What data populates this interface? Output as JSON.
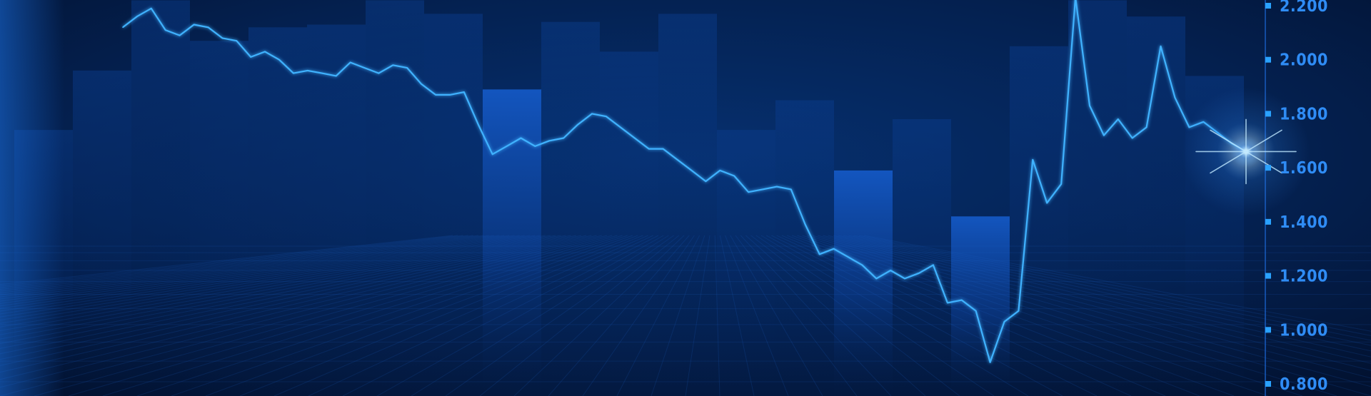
{
  "chart_data": {
    "type": "line",
    "title": "",
    "xlabel": "",
    "ylabel": "",
    "ylim": [
      0.78,
      2.22
    ],
    "y_axis_position": "right",
    "y_ticks": [
      0.8,
      1.0,
      1.2,
      1.4,
      1.6,
      1.8,
      2.0,
      2.2
    ],
    "y_tick_labels": [
      "0.800",
      "1.000",
      "1.200",
      "1.400",
      "1.600",
      "1.800",
      "2.000",
      "2.200"
    ],
    "grid": true,
    "legend": "none",
    "series": [
      {
        "values": [
          2.12,
          2.16,
          2.19,
          2.11,
          2.09,
          2.13,
          2.12,
          2.08,
          2.07,
          2.01,
          2.03,
          2.0,
          1.95,
          1.96,
          1.95,
          1.94,
          1.99,
          1.97,
          1.95,
          1.98,
          1.97,
          1.91,
          1.87,
          1.87,
          1.88,
          1.76,
          1.65,
          1.68,
          1.71,
          1.68,
          1.7,
          1.71,
          1.76,
          1.8,
          1.79,
          1.75,
          1.71,
          1.67,
          1.67,
          1.63,
          1.59,
          1.55,
          1.59,
          1.57,
          1.51,
          1.52,
          1.53,
          1.52,
          1.39,
          1.28,
          1.3,
          1.27,
          1.24,
          1.19,
          1.22,
          1.19,
          1.21,
          1.24,
          1.1,
          1.11,
          1.07,
          0.88,
          1.03,
          1.07,
          1.63,
          1.47,
          1.54,
          2.23,
          1.83,
          1.72,
          1.78,
          1.71,
          1.75,
          2.05,
          1.86,
          1.75,
          1.77,
          1.73,
          1.69,
          1.66
        ]
      }
    ],
    "background_bars": [
      {
        "value": 1.74
      },
      {
        "value": 1.96
      },
      {
        "value": 2.22
      },
      {
        "value": 2.07
      },
      {
        "value": 2.12
      },
      {
        "value": 2.13
      },
      {
        "value": 2.22
      },
      {
        "value": 2.17
      },
      {
        "value": 1.89
      },
      {
        "value": 2.14
      },
      {
        "value": 2.03
      },
      {
        "value": 2.17
      },
      {
        "value": 1.74
      },
      {
        "value": 1.85
      },
      {
        "value": 1.59
      },
      {
        "value": 1.78
      },
      {
        "value": 1.42
      },
      {
        "value": 2.05
      },
      {
        "value": 2.22
      },
      {
        "value": 2.16
      },
      {
        "value": 1.94
      }
    ],
    "colors": {
      "background": "#03163a",
      "line": "#3fb2ff",
      "tick_label": "#2f8cf5",
      "tick_marker": "#2aa2ff",
      "bar_bright": "#1458c4",
      "glow": "#bfe8ff"
    }
  }
}
